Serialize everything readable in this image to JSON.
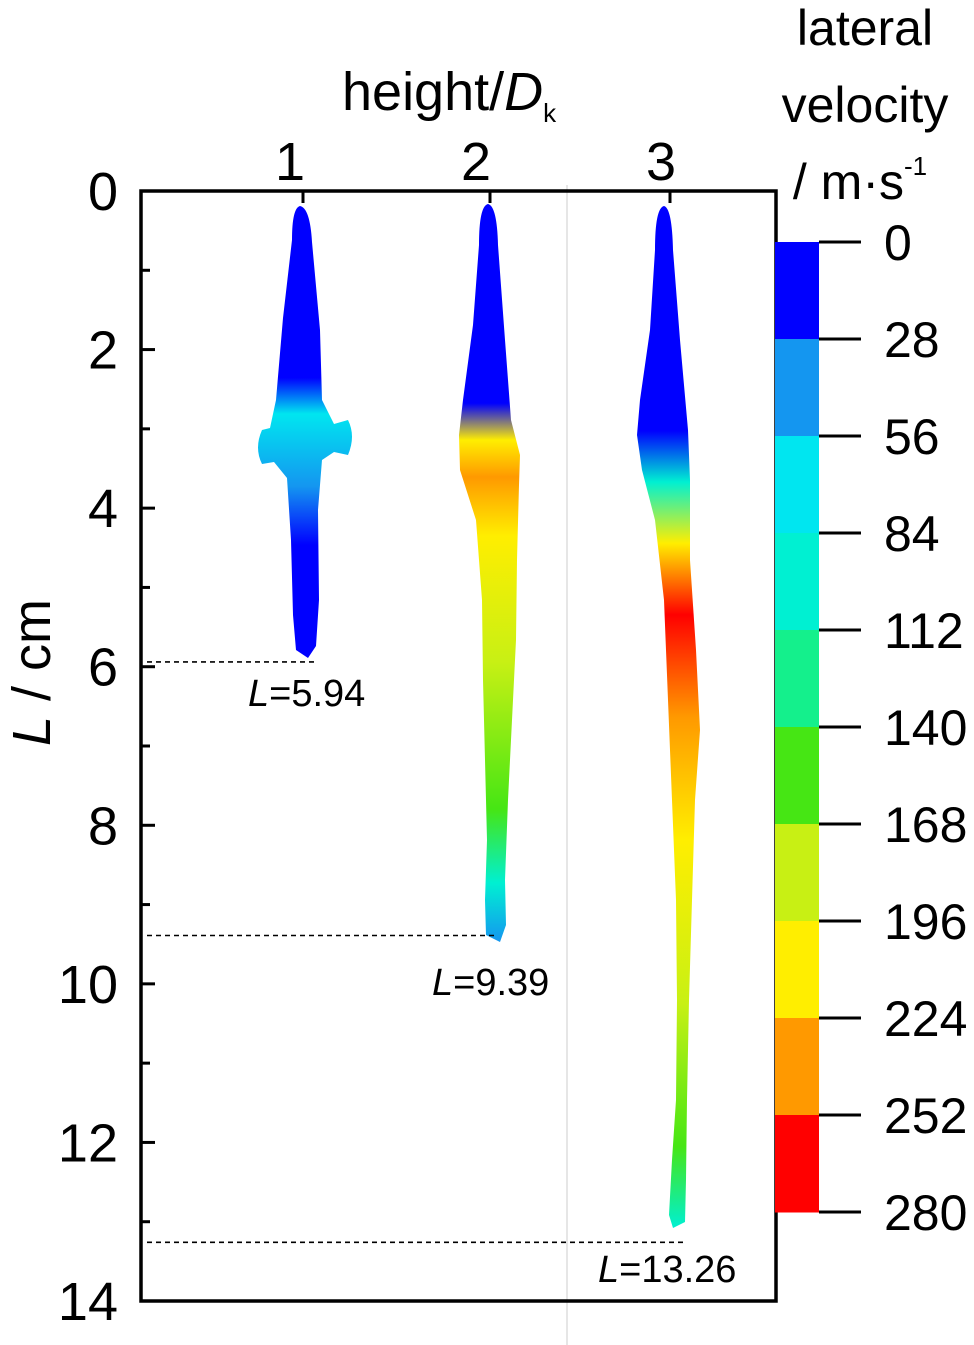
{
  "chart_data": {
    "type": "other",
    "xlabel_text": "height/",
    "xlabel_italic": "D",
    "xlabel_sub": "k",
    "ylabel_italic": "L",
    "ylabel_rest": " / cm",
    "x_ticks": [
      "1",
      "2",
      "3"
    ],
    "y_ticks": [
      "0",
      "2",
      "4",
      "6",
      "8",
      "10",
      "12",
      "14"
    ],
    "ylim": [
      0,
      14
    ],
    "colorbar": {
      "title_lines": [
        "lateral",
        "velocity",
        "/ m·s"
      ],
      "title_sup": "-1",
      "labels": [
        "0",
        "28",
        "56",
        "84",
        "112",
        "140",
        "168",
        "196",
        "224",
        "252",
        "280"
      ],
      "colors": [
        "#0000ff",
        "#1496f0",
        "#00e6f0",
        "#00f0d2",
        "#14f08c",
        "#46e614",
        "#c8f014",
        "#ffee00",
        "#ff9900",
        "#ff0000"
      ]
    },
    "series": [
      {
        "height": "1",
        "penetration_cm": 5.94,
        "label_italic": "L",
        "label_rest": "=5.94"
      },
      {
        "height": "2",
        "penetration_cm": 9.39,
        "label_italic": "L",
        "label_rest": "=9.39"
      },
      {
        "height": "3",
        "penetration_cm": 13.26,
        "label_italic": "L",
        "label_rest": "=13.26"
      }
    ]
  }
}
